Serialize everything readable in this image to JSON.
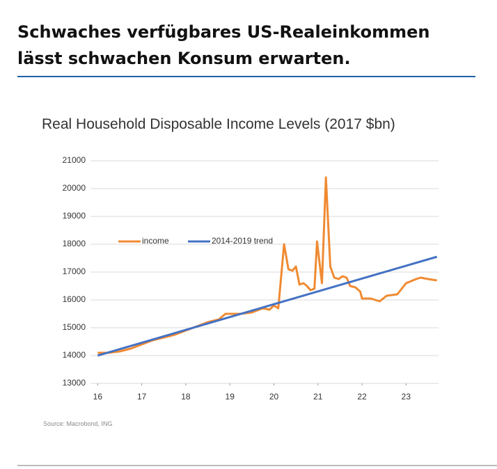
{
  "header": {
    "title_lines": [
      "Schwaches verfügbares US-Realeinkommen",
      "lässt schwachen Konsum erwarten."
    ]
  },
  "chart_data": {
    "type": "line",
    "title": "Real Household Disposable Income Levels (2017 $bn)",
    "source": "Source: Macrobond, ING",
    "xlim": [
      15.9,
      23.8
    ],
    "xticks": [
      16,
      17,
      18,
      19,
      20,
      21,
      22,
      23
    ],
    "ylim": [
      13000,
      21000
    ],
    "yticks": [
      13000,
      14000,
      15000,
      16000,
      17000,
      18000,
      19000,
      20000,
      21000
    ],
    "grid": true,
    "legend": "upper-left",
    "series": [
      {
        "name": "income",
        "color": "#f08a32",
        "x": [
          16.0,
          16.25,
          16.5,
          16.75,
          17.0,
          17.25,
          17.5,
          17.75,
          18.0,
          18.25,
          18.5,
          18.75,
          18.9,
          19.0,
          19.25,
          19.5,
          19.75,
          19.9,
          20.0,
          20.1,
          20.23,
          20.33,
          20.42,
          20.5,
          20.58,
          20.67,
          20.75,
          20.83,
          20.92,
          20.98,
          21.09,
          21.18,
          21.28,
          21.37,
          21.47,
          21.56,
          21.65,
          21.73,
          21.85,
          21.96,
          22.0,
          22.2,
          22.4,
          22.56,
          22.8,
          23.0,
          23.23,
          23.33,
          23.5,
          23.7
        ],
        "values": [
          14100,
          14100,
          14150,
          14250,
          14400,
          14550,
          14650,
          14750,
          14900,
          15050,
          15200,
          15300,
          15500,
          15500,
          15500,
          15550,
          15700,
          15650,
          15800,
          15700,
          18000,
          17100,
          17050,
          17200,
          16550,
          16600,
          16500,
          16350,
          16400,
          18100,
          16600,
          20400,
          17200,
          16800,
          16750,
          16850,
          16800,
          16500,
          16450,
          16300,
          16050,
          16050,
          15950,
          16150,
          16200,
          16600,
          16750,
          16800,
          16750,
          16700
        ]
      },
      {
        "name": "2014-2019 trend",
        "color": "#4472c4",
        "x": [
          16.0,
          23.7
        ],
        "values": [
          14000,
          17550
        ]
      }
    ]
  }
}
